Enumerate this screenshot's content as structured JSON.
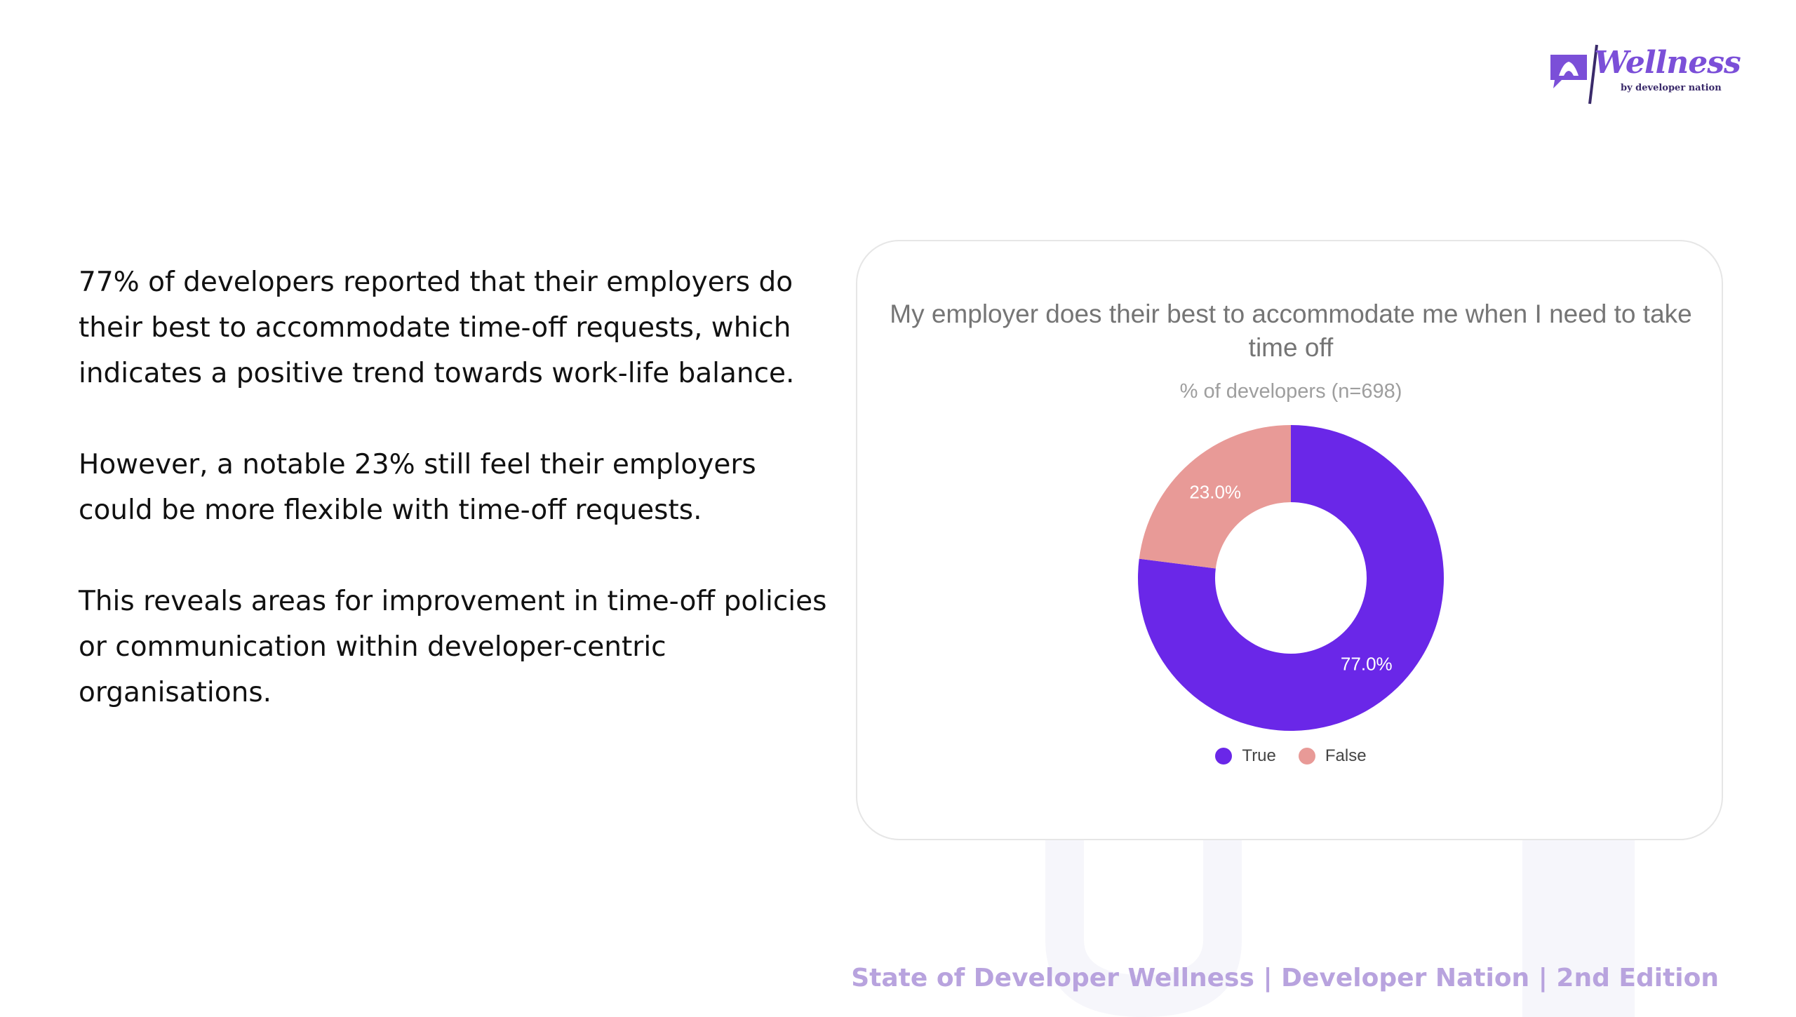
{
  "logo": {
    "word": "Wellness",
    "sub": "by developer nation",
    "icon": "chat-bubble-lotus-icon",
    "color": "#7b4fd8"
  },
  "body": {
    "paragraphs": [
      "77% of developers reported that their employers do their best to accommodate time-off requests, which indicates a positive trend towards work-life balance.",
      "However, a notable 23% still feel their employers could be more flexible with time-off requests.",
      "This reveals areas for improvement in time-off policies or communication within developer-centric organisations."
    ]
  },
  "chart_data": {
    "type": "pie",
    "donut": true,
    "title": "My employer does their best to accommodate me when I need to take time off",
    "subtitle": "% of developers (n=698)",
    "categories": [
      "True",
      "False"
    ],
    "values": [
      77.0,
      23.0
    ],
    "labels": [
      "77.0%",
      "23.0%"
    ],
    "colors": [
      "#6a27e8",
      "#e89a97"
    ],
    "legend_position": "bottom"
  },
  "footer": {
    "text": "State of Developer Wellness | Developer Nation | 2nd Edition"
  },
  "colors": {
    "footer": "#b8a3de",
    "watermark": "#f6f6fb"
  }
}
